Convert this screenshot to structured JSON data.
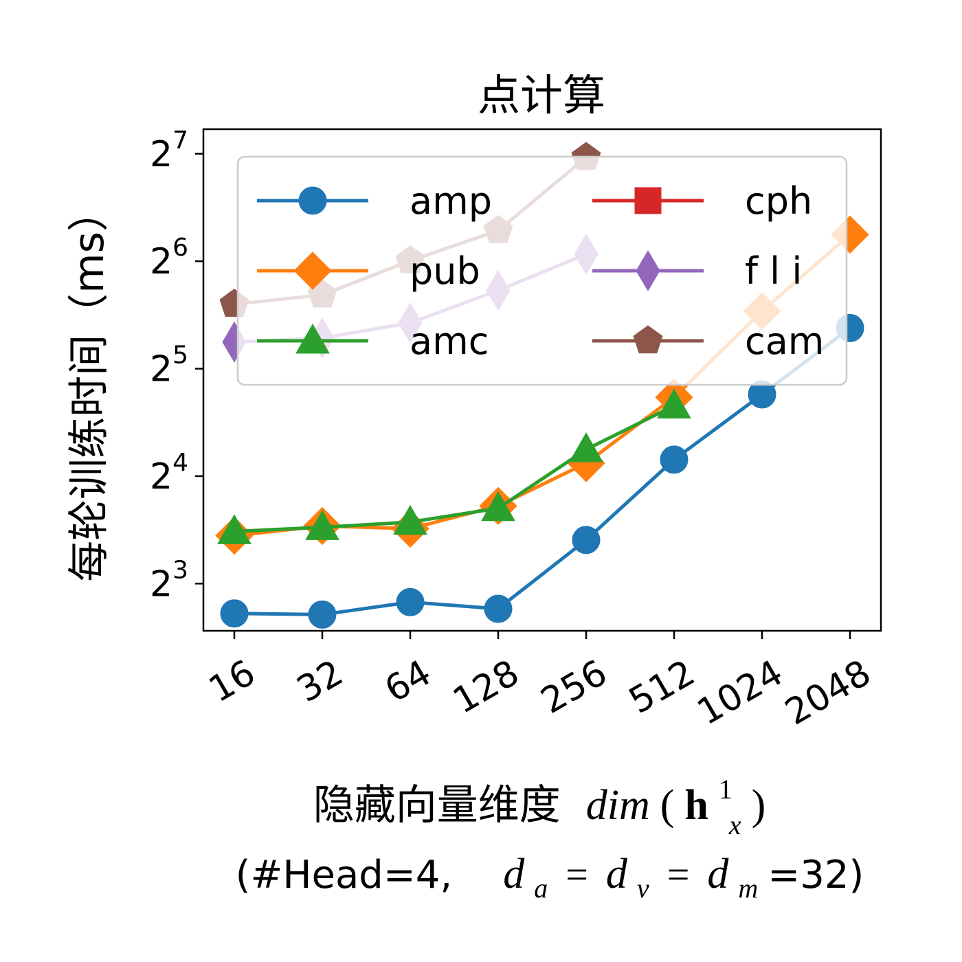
{
  "chart_data": {
    "type": "line",
    "title": "点计算",
    "ylabel": "每轮训练时间（ms）",
    "xlabel": {
      "line1_cn": "隐藏向量维度",
      "line1_math": {
        "fn": "dim",
        "open": "(",
        "bold": "h",
        "sup": "1",
        "sub": "x",
        "close": ")"
      },
      "line2_prefix": "(#Head=4,",
      "line2_math": {
        "d": "d",
        "a": "a",
        "v": "v",
        "m": "m",
        "eq": "="
      },
      "line2_suffix": "=32)"
    },
    "x_categories": [
      "16",
      "32",
      "64",
      "128",
      "256",
      "512",
      "1024",
      "2048"
    ],
    "y_scale": "log2",
    "y_ticks": [
      {
        "base": "2",
        "exp": "3",
        "value": 8
      },
      {
        "base": "2",
        "exp": "4",
        "value": 16
      },
      {
        "base": "2",
        "exp": "5",
        "value": 32
      },
      {
        "base": "2",
        "exp": "6",
        "value": 64
      },
      {
        "base": "2",
        "exp": "7",
        "value": 128
      }
    ],
    "ylim": [
      5.9,
      150
    ],
    "grid": false,
    "legend": {
      "placement": "upper-center",
      "columns": 2
    },
    "series": [
      {
        "name": "amp",
        "color": "#1f77b4",
        "marker": "circle",
        "values": [
          6.6,
          6.55,
          7.1,
          6.8,
          10.6,
          17.8,
          27.1,
          41.6
        ]
      },
      {
        "name": "pub",
        "color": "#ff7f0e",
        "marker": "diamond",
        "values": [
          10.9,
          11.6,
          11.4,
          13.2,
          17.4,
          26.6,
          46.4,
          76
        ]
      },
      {
        "name": "amc",
        "color": "#2ca02c",
        "marker": "triangle",
        "values": [
          11.2,
          11.5,
          11.9,
          13.0,
          19.0,
          25.2,
          null,
          null
        ]
      },
      {
        "name": "cph",
        "color": "#d62728",
        "marker": "square",
        "values": [
          null,
          null,
          null,
          null,
          null,
          null,
          null,
          null
        ]
      },
      {
        "name": "f l i",
        "color": "#9467bd",
        "marker": "thin-diamond",
        "values": [
          38,
          39,
          43,
          53,
          67,
          null,
          null,
          null
        ]
      },
      {
        "name": "cam",
        "color": "#8c564b",
        "marker": "pentagon",
        "values": [
          48.5,
          51.5,
          64.2,
          78,
          125,
          null,
          null,
          null
        ]
      }
    ]
  }
}
